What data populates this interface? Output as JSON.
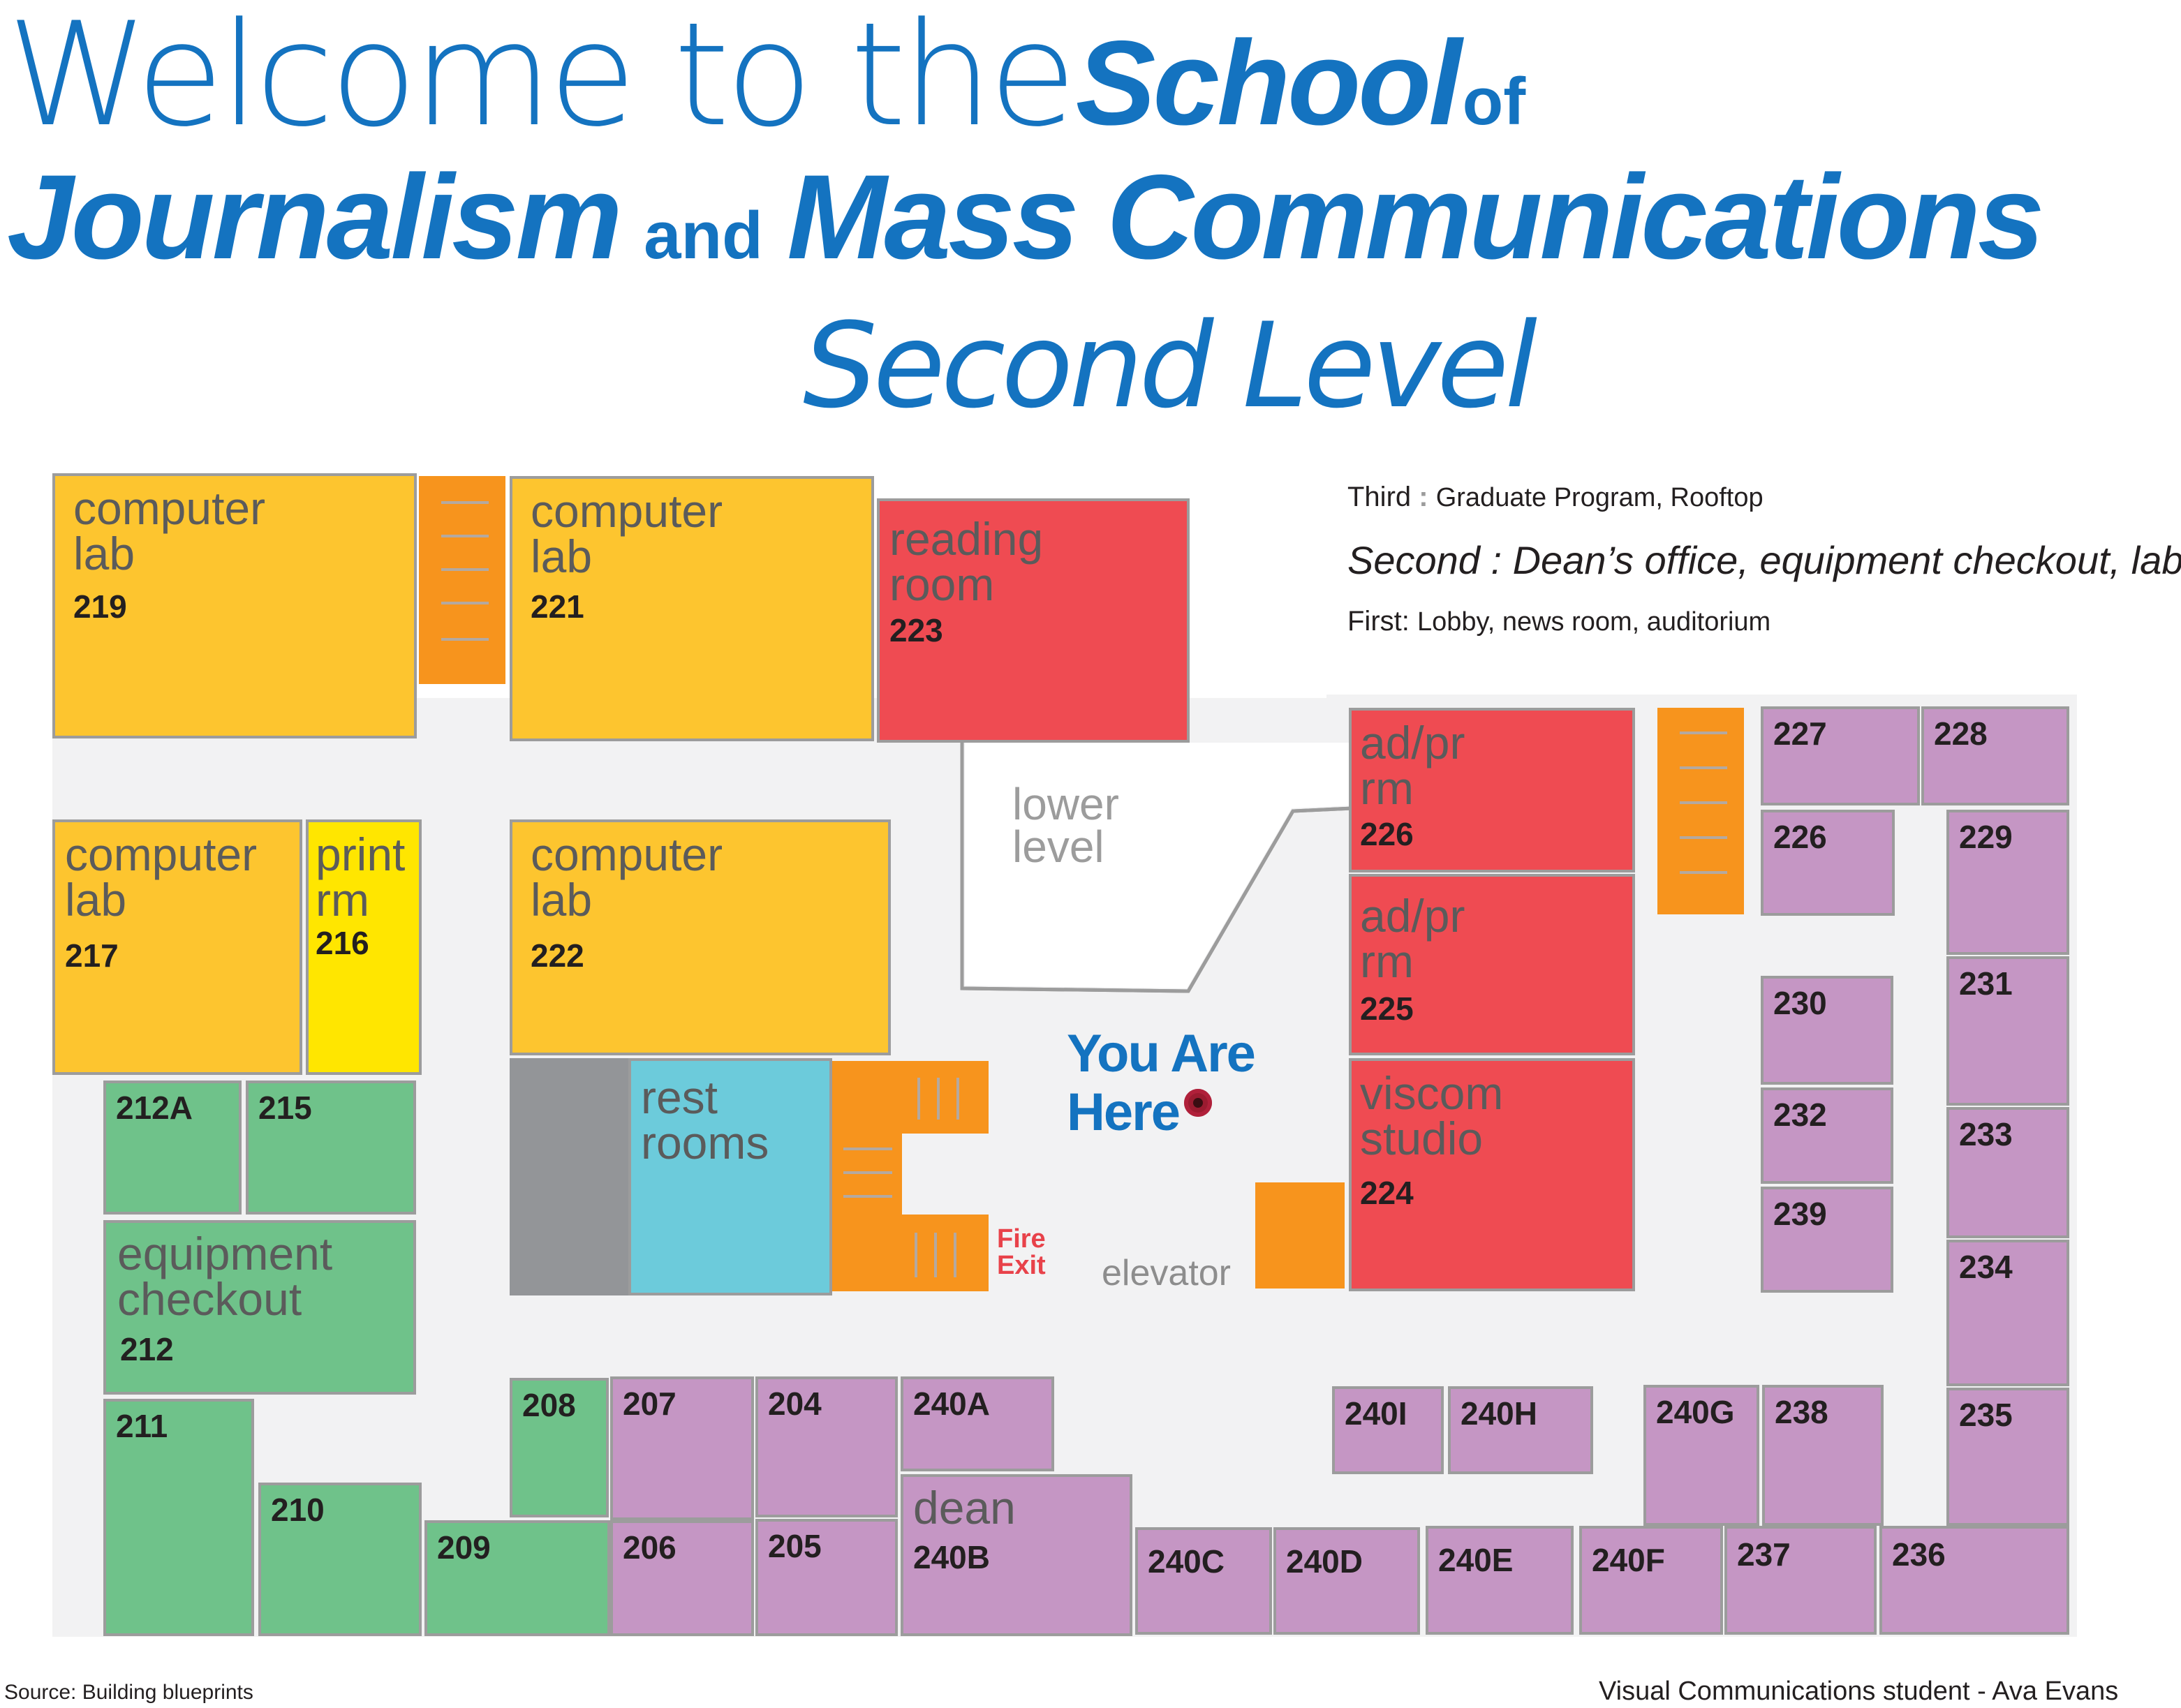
{
  "title": {
    "line1_light": "Welcome to the",
    "line1_bold": "School",
    "line1_small": "of",
    "line2_bold_a": "Journalism",
    "line2_small": "and",
    "line2_bold_b": "Mass Communications",
    "subtitle": "Second Level"
  },
  "legend": {
    "third_label": "Third",
    "third_sep": ":",
    "third_text": "Graduate Program, Rooftop",
    "second_label": "Second :",
    "second_text": "Dean’s office, equipment checkout, labs",
    "first_label": "First:",
    "first_text": "Lobby, news room, auditorium"
  },
  "rooms": {
    "r219": {
      "name": "computer\nlab",
      "number": "219"
    },
    "r221": {
      "name": "computer\nlab",
      "number": "221"
    },
    "r223": {
      "name": "reading\nroom",
      "number": "223"
    },
    "r217": {
      "name": "computer\nlab",
      "number": "217"
    },
    "r216": {
      "name": "print\nrm",
      "number": "216"
    },
    "r222": {
      "name": "computer\nlab",
      "number": "222"
    },
    "r226": {
      "name": "ad/pr\nrm",
      "number": "226"
    },
    "r225": {
      "name": "ad/pr\nrm",
      "number": "225"
    },
    "r224": {
      "name": "viscom\nstudio",
      "number": "224"
    },
    "r212": {
      "name": "equipment\ncheckout",
      "number": "212"
    },
    "restrooms": {
      "name": "rest\nrooms"
    },
    "r240B": {
      "name": "dean",
      "number": "240B"
    },
    "p212A": "212A",
    "p215": "215",
    "p211": "211",
    "p210": "210",
    "p209": "209",
    "p208": "208",
    "p207": "207",
    "p204": "204",
    "p206": "206",
    "p205": "205",
    "p240A": "240A",
    "p240C": "240C",
    "p240D": "240D",
    "p240E": "240E",
    "p240F": "240F",
    "p237": "237",
    "p236": "236",
    "p240I": "240I",
    "p240H": "240H",
    "p240G": "240G",
    "p238": "238",
    "p227": "227",
    "p228": "228",
    "p226b": "226",
    "p229": "229",
    "p230": "230",
    "p231": "231",
    "p232": "232",
    "p233": "233",
    "p239": "239",
    "p234": "234",
    "p235": "235"
  },
  "labels": {
    "lower_level": "lower\nlevel",
    "you_are_here_1": "You Are",
    "you_are_here_2": "Here",
    "fire_exit_1": "Fire",
    "fire_exit_2": "Exit",
    "elevator": "elevator"
  },
  "footer": {
    "source": "Source: Building blueprints",
    "credit": "Visual Communications student - Ava Evans"
  },
  "colors": {
    "title_blue": "#1473c0",
    "lab_orange": "#fdc52f",
    "print_yellow": "#ffe600",
    "red_rooms": "#ef4b52",
    "green_rooms": "#6fc28a",
    "purple_rooms": "#c596c4",
    "restroom_blue": "#6ccbdb",
    "stairs_orange": "#f7941d",
    "fire_exit_red": "#e8424a",
    "marker": "#9b1b30"
  }
}
